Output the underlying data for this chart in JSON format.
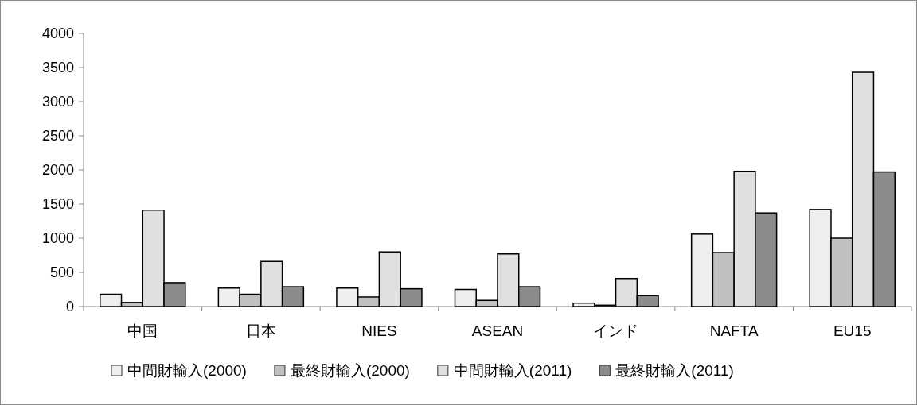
{
  "chart_data": {
    "type": "bar",
    "categories": [
      "中国",
      "日本",
      "NIES",
      "ASEAN",
      "インド",
      "NAFTA",
      "EU15"
    ],
    "series": [
      {
        "name": "中間財輸入(2000)",
        "color": "#eeeeee",
        "values": [
          180,
          270,
          270,
          250,
          50,
          1060,
          1420
        ]
      },
      {
        "name": "最終財輸入(2000)",
        "color": "#c0c0c0",
        "values": [
          60,
          180,
          140,
          90,
          20,
          790,
          1000
        ]
      },
      {
        "name": "中間財輸入(2011)",
        "color": "#e0e0e0",
        "values": [
          1410,
          660,
          800,
          770,
          410,
          1980,
          3430
        ]
      },
      {
        "name": "最終財輸入(2011)",
        "color": "#8c8c8c",
        "values": [
          350,
          290,
          260,
          290,
          160,
          1370,
          1970
        ]
      }
    ],
    "ylim": [
      0,
      4000
    ],
    "yticks": [
      0,
      500,
      1000,
      1500,
      2000,
      2500,
      3000,
      3500,
      4000
    ],
    "grid": false,
    "legend": "bottom"
  }
}
